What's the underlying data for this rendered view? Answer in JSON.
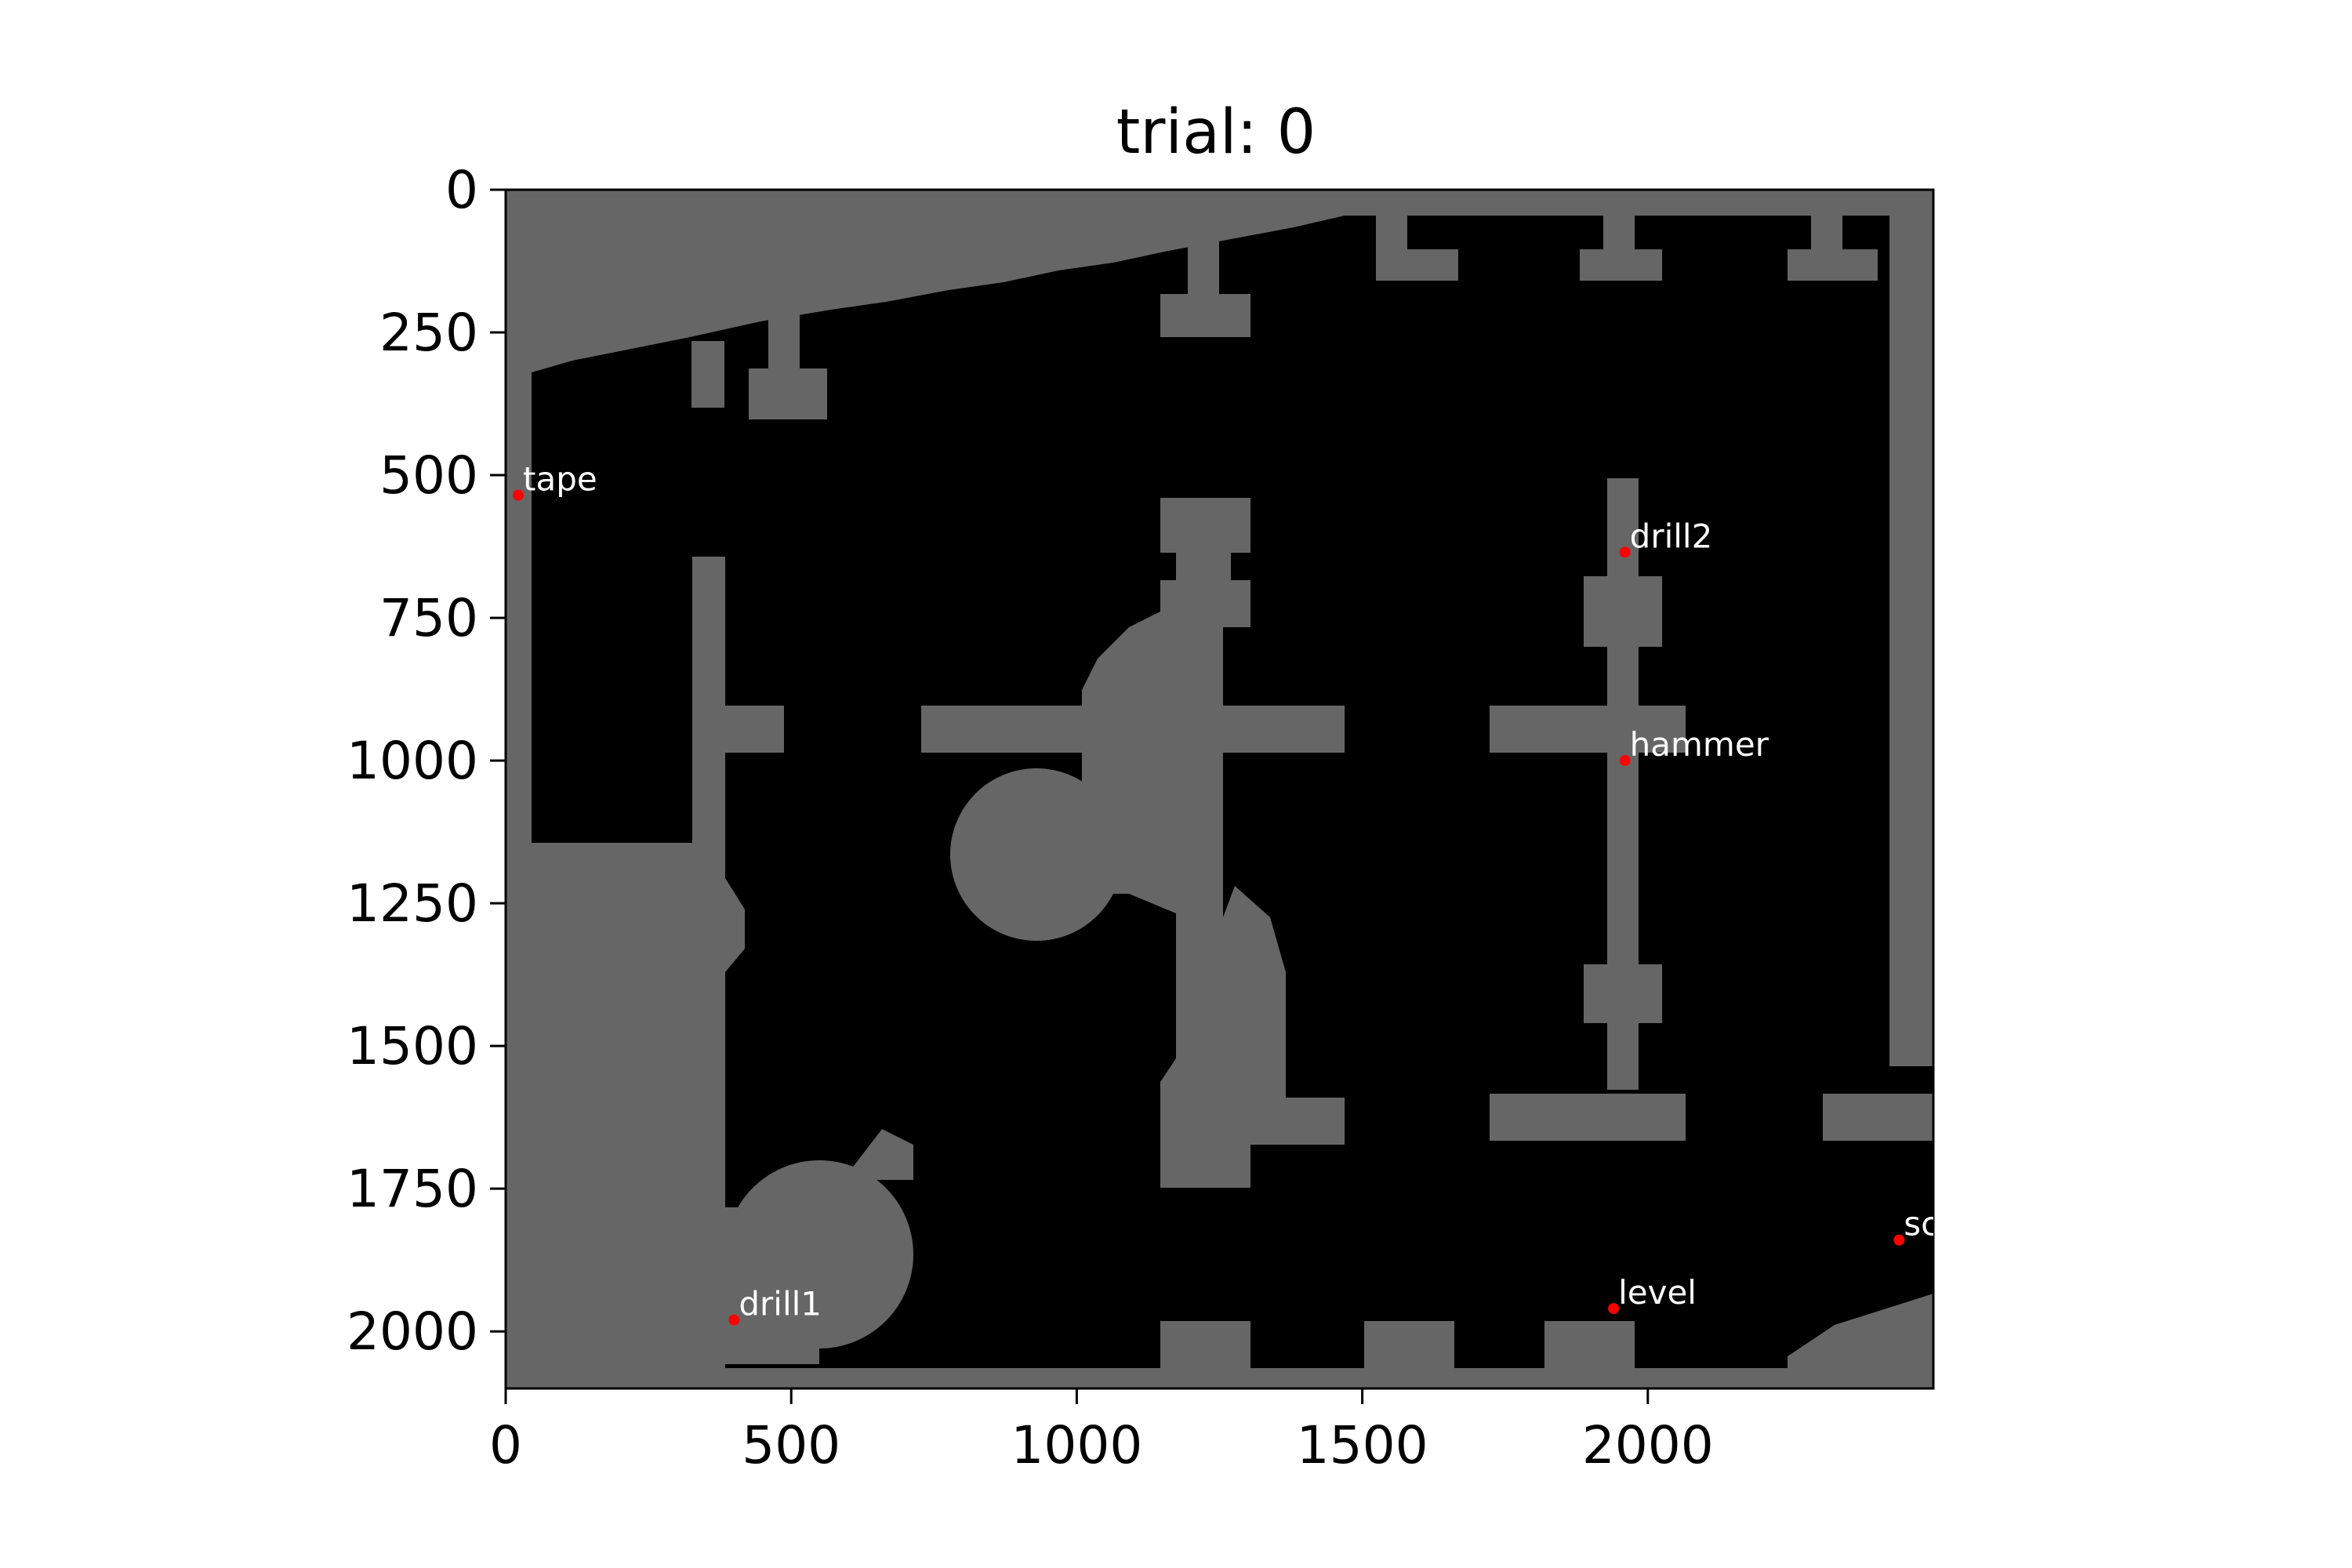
{
  "chart_data": {
    "type": "scatter",
    "title": "trial: 0",
    "xlabel": "",
    "ylabel": "",
    "xlim": [
      0,
      2500
    ],
    "ylim": [
      2100,
      0
    ],
    "xticks": [
      "0",
      "500",
      "1000",
      "1500",
      "2000"
    ],
    "xtick_values": [
      0,
      500,
      1000,
      1500,
      2000
    ],
    "yticks": [
      "0",
      "250",
      "500",
      "750",
      "1000",
      "1250",
      "1500",
      "1750",
      "2000"
    ],
    "ytick_values": [
      0,
      250,
      500,
      750,
      1000,
      1250,
      1500,
      1750,
      2000
    ],
    "background_image": "occupancy grid map: black free space, gray walls/obstacles",
    "point_color": "#ff0000",
    "label_color": "#ffffff",
    "wall_color": "#666666",
    "free_color": "#000000",
    "points": [
      {
        "label": "tape",
        "x": 22,
        "y": 535
      },
      {
        "label": "drill2",
        "x": 1960,
        "y": 635
      },
      {
        "label": "hammer",
        "x": 1960,
        "y": 1000
      },
      {
        "label": "sc",
        "x": 2440,
        "y": 1840
      },
      {
        "label": "level",
        "x": 1940,
        "y": 1960
      },
      {
        "label": "drill1",
        "x": 400,
        "y": 1980
      }
    ]
  }
}
